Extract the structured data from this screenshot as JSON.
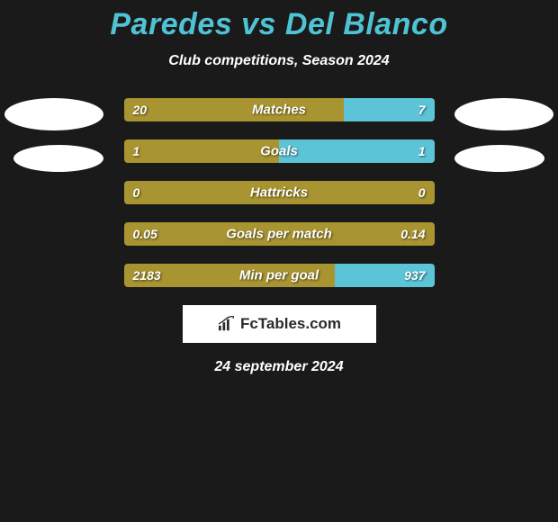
{
  "title": "Paredes vs Del Blanco",
  "subtitle": "Club competitions, Season 2024",
  "date": "24 september 2024",
  "colors": {
    "background": "#1a1a1a",
    "title": "#4fc3d4",
    "text": "#ffffff",
    "bar_left": "#a89430",
    "bar_right": "#5bc4d6",
    "logo_bg": "#ffffff",
    "logo_text": "#2a2a2a"
  },
  "logo": {
    "text": "FcTables.com"
  },
  "bars": [
    {
      "label": "Matches",
      "left_value": "20",
      "right_value": "7",
      "left_pct": 71
    },
    {
      "label": "Goals",
      "left_value": "1",
      "right_value": "1",
      "left_pct": 50
    },
    {
      "label": "Hattricks",
      "left_value": "0",
      "right_value": "0",
      "left_pct": 100
    },
    {
      "label": "Goals per match",
      "left_value": "0.05",
      "right_value": "0.14",
      "left_pct": 100
    },
    {
      "label": "Min per goal",
      "left_value": "2183",
      "right_value": "937",
      "left_pct": 68
    }
  ]
}
